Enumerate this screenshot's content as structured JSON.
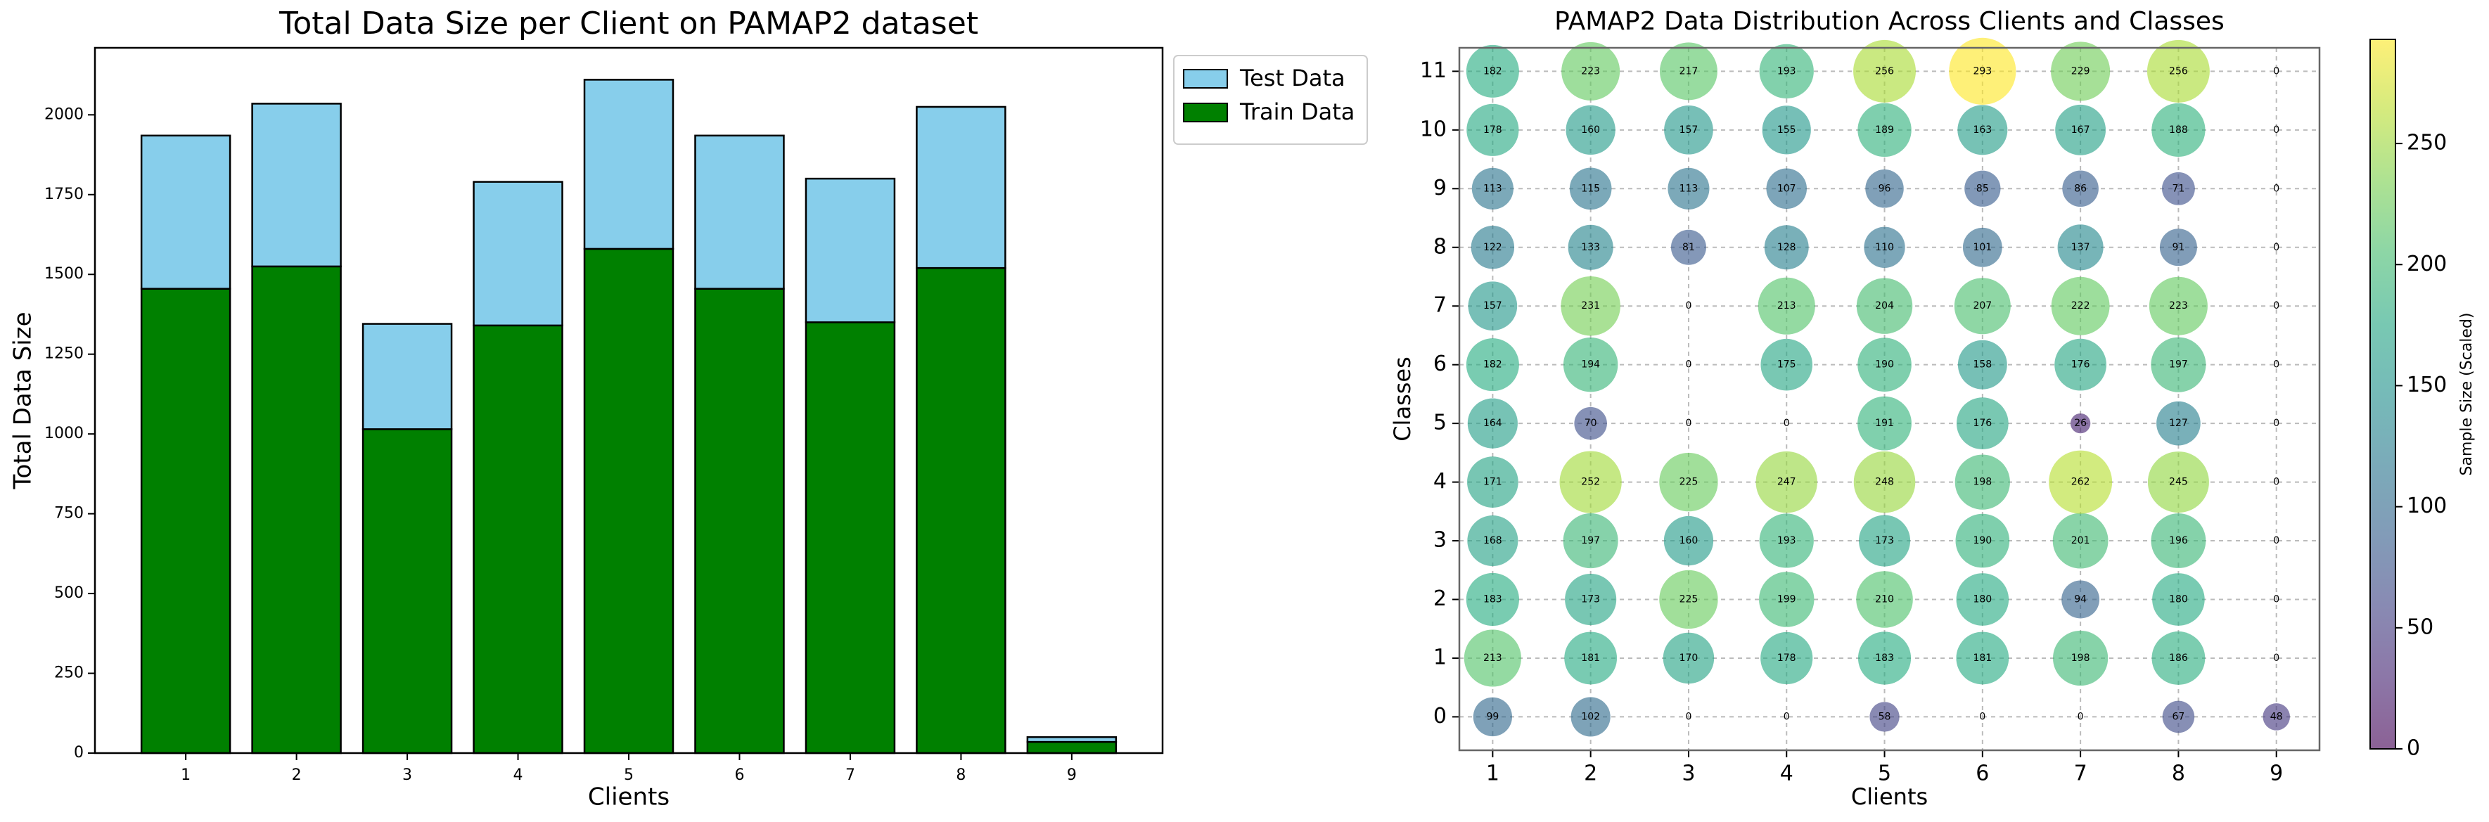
{
  "chart_data": [
    {
      "type": "bar",
      "stacked": true,
      "title": "Total Data Size per Client on PAMAP2 dataset",
      "xlabel": "Clients",
      "ylabel": "Total Data Size",
      "categories": [
        1,
        2,
        3,
        4,
        5,
        6,
        7,
        8,
        9
      ],
      "xlim": [
        0.18,
        9.82
      ],
      "ylim": [
        0,
        2210
      ],
      "yticks": [
        0,
        250,
        500,
        750,
        1000,
        1250,
        1500,
        1750,
        2000
      ],
      "legend": "outside-right",
      "series": [
        {
          "name": "Train Data",
          "color": "#008000",
          "values": [
            1455,
            1525,
            1015,
            1340,
            1580,
            1455,
            1350,
            1520,
            35
          ]
        },
        {
          "name": "Test Data",
          "color": "#87ceeb",
          "values": [
            480,
            510,
            330,
            450,
            530,
            480,
            450,
            505,
            15
          ]
        }
      ]
    },
    {
      "type": "bubble",
      "title": "PAMAP2 Data Distribution Across Clients and Classes",
      "xlabel": "Clients",
      "ylabel": "Classes",
      "x": [
        1,
        2,
        3,
        4,
        5,
        6,
        7,
        8,
        9
      ],
      "y": [
        0,
        1,
        2,
        3,
        4,
        5,
        6,
        7,
        8,
        9,
        10,
        11
      ],
      "values": [
        [
          99,
          102,
          0,
          0,
          58,
          0,
          0,
          67,
          48
        ],
        [
          213,
          181,
          170,
          178,
          183,
          181,
          198,
          186,
          0
        ],
        [
          183,
          173,
          225,
          199,
          210,
          180,
          94,
          180,
          0
        ],
        [
          168,
          197,
          160,
          193,
          173,
          190,
          201,
          196,
          0
        ],
        [
          171,
          252,
          225,
          247,
          248,
          198,
          262,
          245,
          0
        ],
        [
          164,
          70,
          0,
          0,
          191,
          176,
          26,
          127,
          0
        ],
        [
          182,
          194,
          0,
          175,
          190,
          158,
          176,
          197,
          0
        ],
        [
          157,
          231,
          0,
          213,
          204,
          207,
          222,
          223,
          0
        ],
        [
          122,
          133,
          81,
          128,
          110,
          101,
          137,
          91,
          0
        ],
        [
          113,
          115,
          113,
          107,
          96,
          85,
          86,
          71,
          0
        ],
        [
          178,
          160,
          157,
          155,
          189,
          163,
          167,
          188,
          0
        ],
        [
          182,
          223,
          217,
          193,
          256,
          293,
          229,
          256,
          0
        ]
      ],
      "xlim": [
        0.66,
        9.44
      ],
      "ylim": [
        -0.57,
        11.4
      ],
      "xticks": [
        1,
        2,
        3,
        4,
        5,
        6,
        7,
        8,
        9
      ],
      "yticks": [
        0,
        1,
        2,
        3,
        4,
        5,
        6,
        7,
        8,
        9,
        10,
        11
      ],
      "grid": true,
      "colormap": "viridis",
      "colorbar": {
        "label": "Sample Size (Scaled)",
        "lim": [
          0,
          293
        ],
        "ticks": [
          0,
          50,
          100,
          150,
          200,
          250
        ]
      }
    }
  ]
}
